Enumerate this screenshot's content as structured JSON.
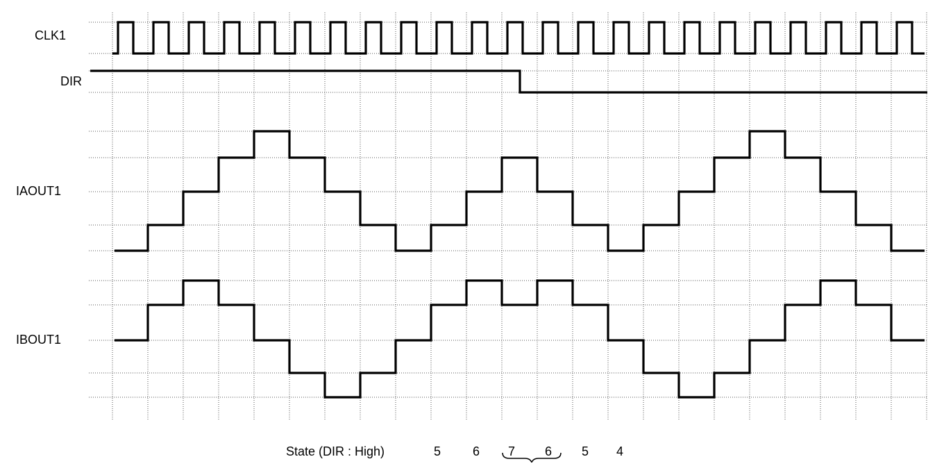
{
  "signals": [
    "CLK1",
    "DIR",
    "IAOUT1",
    "IBOUT1"
  ],
  "state_label": {
    "title": "State (DIR : High)",
    "states": [
      "5",
      "6",
      "7",
      "6",
      "5",
      "4"
    ]
  }
}
